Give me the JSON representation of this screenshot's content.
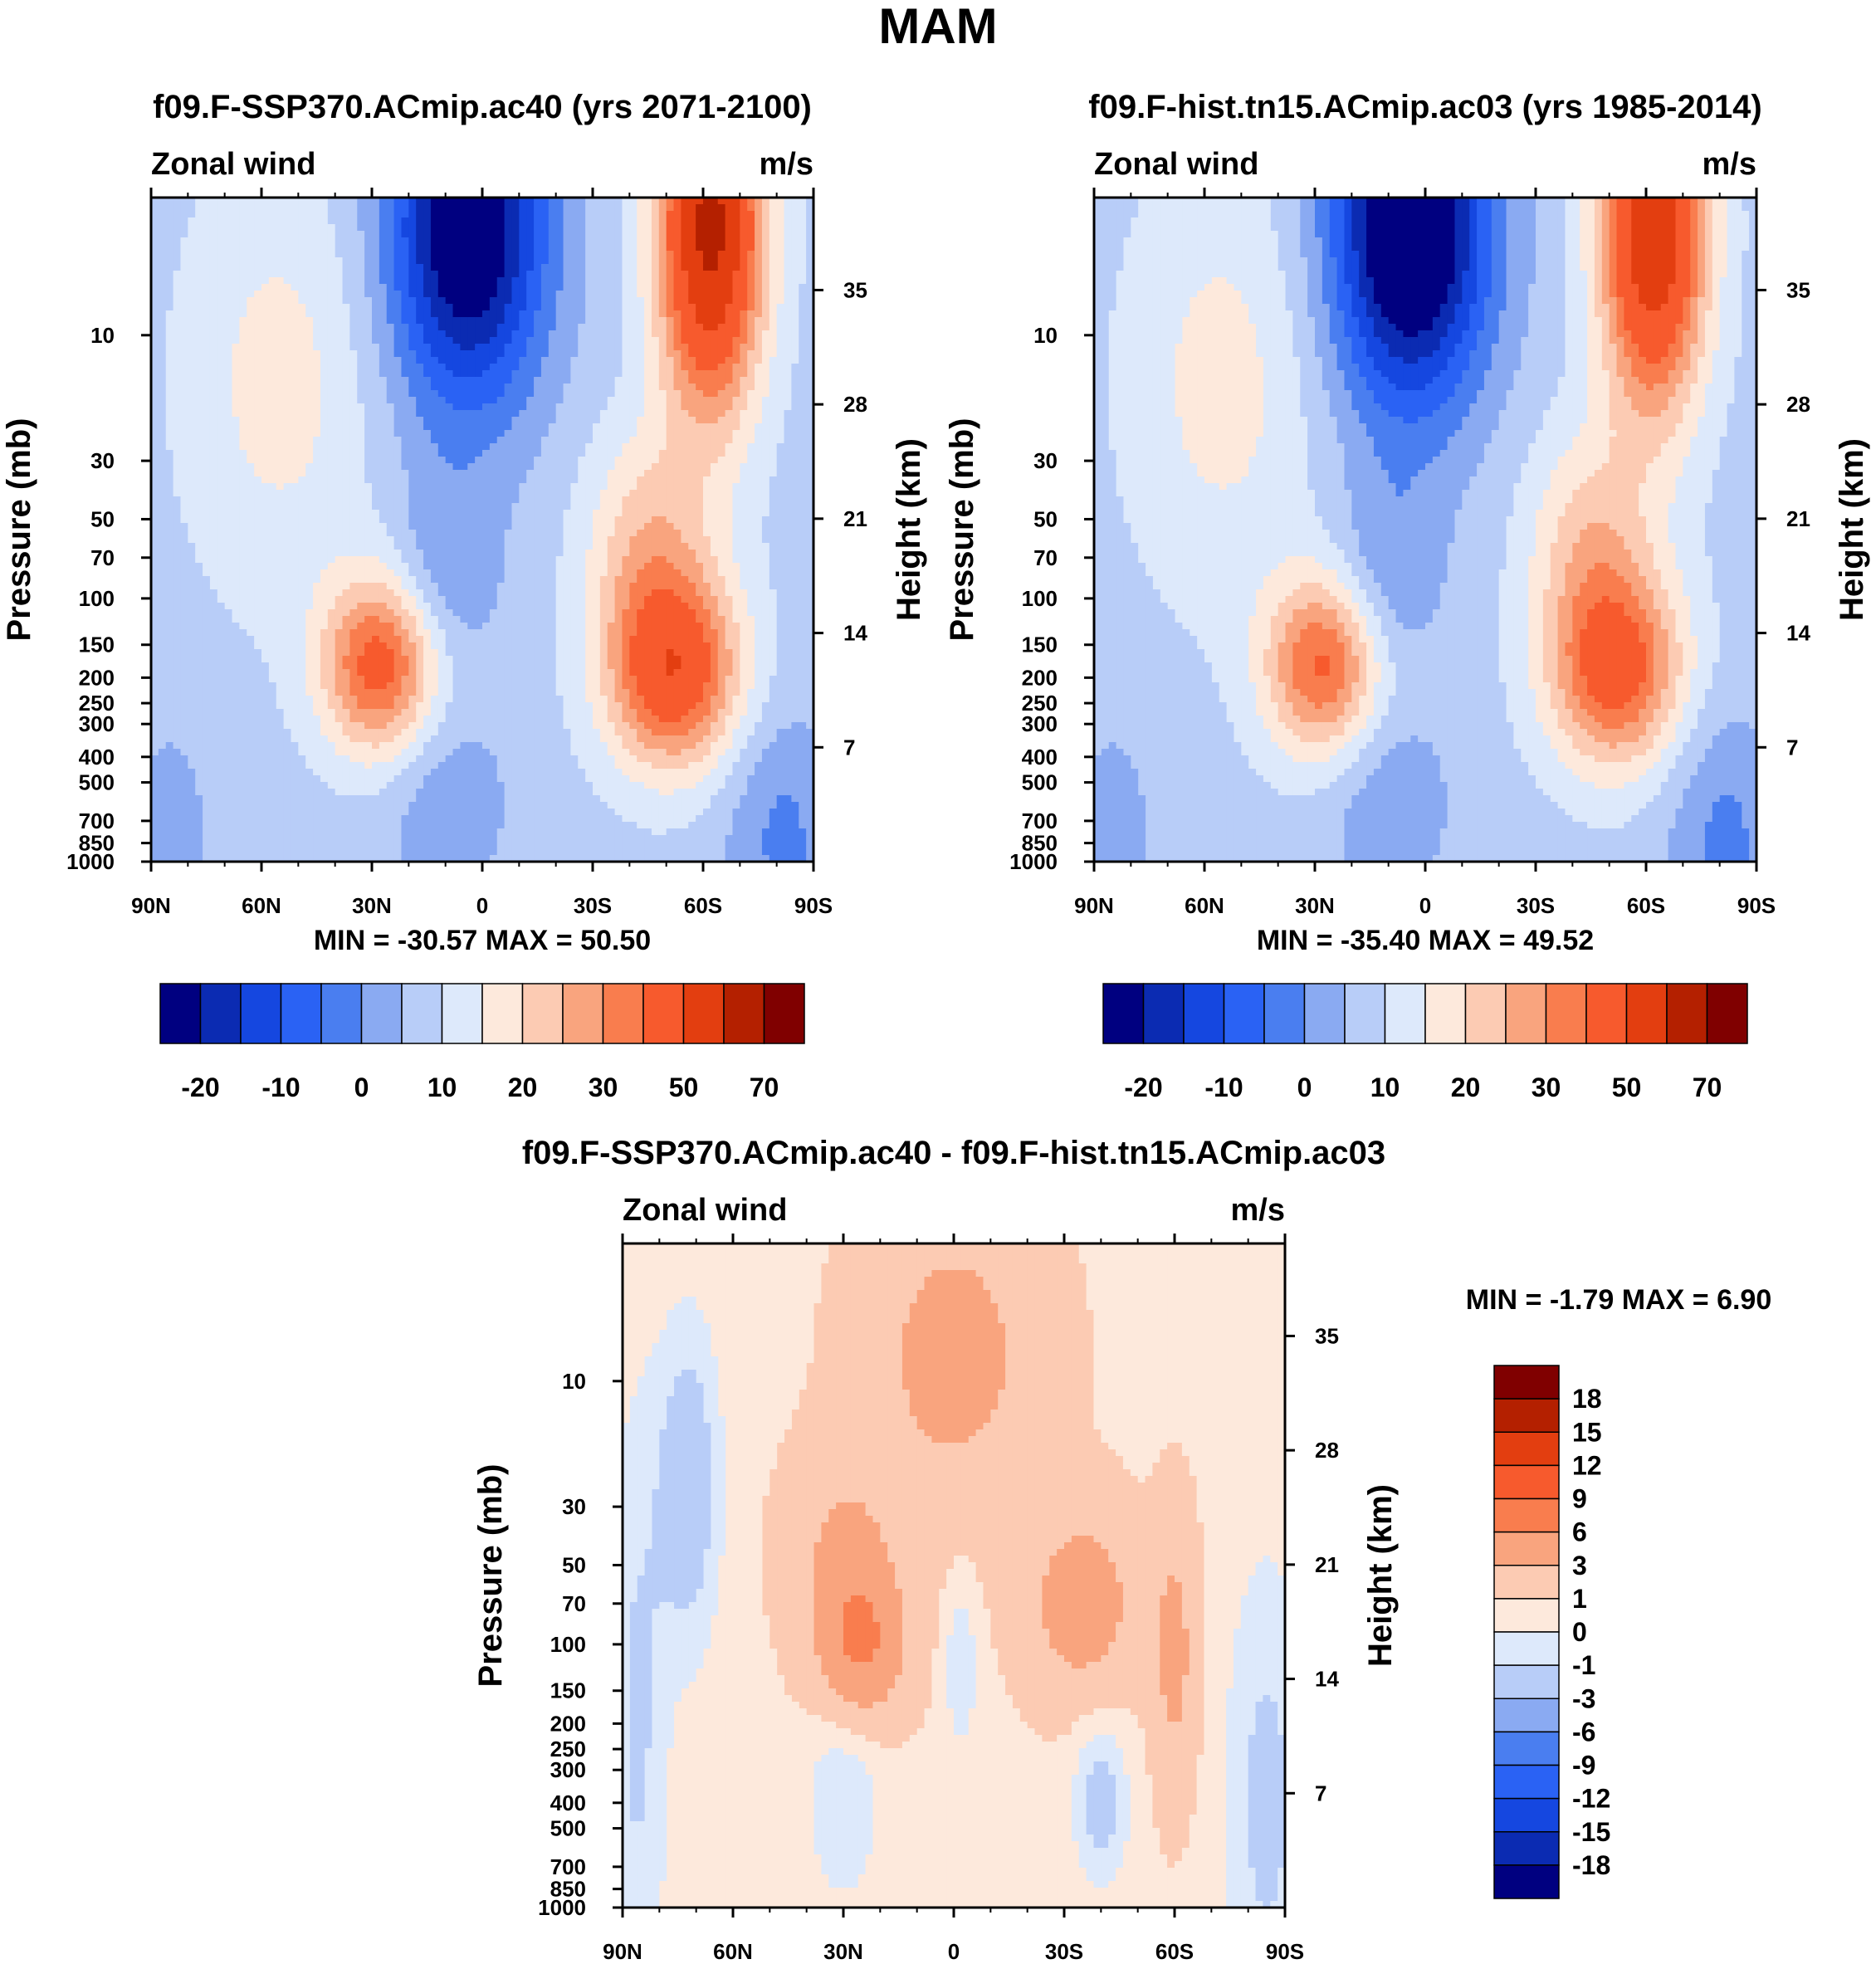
{
  "figure_title": "MAM",
  "colors": {
    "abs": [
      "#000080",
      "#0b2bb2",
      "#1547e0",
      "#2a62f4",
      "#4a7ef0",
      "#8aaaf2",
      "#b8cdf8",
      "#dde9fb",
      "#fde9dc",
      "#fccbb3",
      "#f9a47e",
      "#f97d4e",
      "#f75a2d",
      "#e33e10",
      "#b42000",
      "#800000"
    ],
    "diff": [
      "#000080",
      "#0b2bb2",
      "#1547e0",
      "#2a62f4",
      "#4a7ef0",
      "#8aaaf2",
      "#b8cdf8",
      "#dde9fb",
      "#fde9dc",
      "#fccbb3",
      "#f9a47e",
      "#f97d4e",
      "#f75a2d",
      "#e33e10",
      "#b42000",
      "#800000"
    ]
  },
  "panels": [
    {
      "id": "ssp370",
      "title": "f09.F-SSP370.ACmip.ac40 (yrs 2071-2100)",
      "left_label": "Zonal wind",
      "right_label": "m/s",
      "ylabel": "Pressure (mb)",
      "ylabel_right": "Height (km)",
      "stats": "MIN = -30.57  MAX =  50.50"
    },
    {
      "id": "hist",
      "title": "f09.F-hist.tn15.ACmip.ac03 (yrs 1985-2014)",
      "left_label": "Zonal wind",
      "right_label": "m/s",
      "ylabel": "Pressure (mb)",
      "ylabel_right": "Height (km)",
      "stats": "MIN = -35.40  MAX =  49.52"
    },
    {
      "id": "diff",
      "title": "f09.F-SSP370.ACmip.ac40 - f09.F-hist.tn15.ACmip.ac03",
      "left_label": "Zonal wind",
      "right_label": "m/s",
      "ylabel": "Pressure (mb)",
      "ylabel_right": "Height (km)",
      "stats": "MIN =  -1.79  MAX =   6.90"
    }
  ],
  "chart_data": [
    {
      "type": "heatmap",
      "panel": "ssp370",
      "title": "f09.F-SSP370.ACmip.ac40 (yrs 2071-2100)",
      "variable": "Zonal wind",
      "units": "m/s",
      "xlabel": "",
      "ylabel": "Pressure (mb)",
      "ylabel_right": "Height (km)",
      "x_ticks": [
        "90N",
        "60N",
        "30N",
        "0",
        "30S",
        "60S",
        "90S"
      ],
      "x_range": [
        90,
        -90
      ],
      "y_ticks": [
        10,
        30,
        50,
        70,
        100,
        150,
        200,
        250,
        300,
        400,
        500,
        700,
        850,
        1000
      ],
      "y_range": [
        3,
        1000
      ],
      "height_ticks_km": [
        7,
        14,
        21,
        28,
        35
      ],
      "min": -30.57,
      "max": 50.5,
      "colorbar_labels": [
        "-20",
        "-10",
        "0",
        "10",
        "20",
        "30",
        "50",
        "70"
      ],
      "features": [
        {
          "kind": "easterly core",
          "lat_range": [
            20,
            -5
          ],
          "p_range": [
            3,
            40
          ],
          "value": -30
        },
        {
          "kind": "westerly jet",
          "lat": 28,
          "p": 180,
          "value": 30
        },
        {
          "kind": "westerly jet",
          "lat": -52,
          "p": 180,
          "value": 35
        },
        {
          "kind": "polar night jet",
          "lat": -62,
          "p": 5,
          "value": 50
        }
      ]
    },
    {
      "type": "heatmap",
      "panel": "hist",
      "title": "f09.F-hist.tn15.ACmip.ac03 (yrs 1985-2014)",
      "variable": "Zonal wind",
      "units": "m/s",
      "xlabel": "",
      "ylabel": "Pressure (mb)",
      "ylabel_right": "Height (km)",
      "x_ticks": [
        "90N",
        "60N",
        "30N",
        "0",
        "30S",
        "60S",
        "90S"
      ],
      "x_range": [
        90,
        -90
      ],
      "y_ticks": [
        10,
        30,
        50,
        70,
        100,
        150,
        200,
        250,
        300,
        400,
        500,
        700,
        850,
        1000
      ],
      "y_range": [
        3,
        1000
      ],
      "height_ticks_km": [
        7,
        14,
        21,
        28,
        35
      ],
      "min": -35.4,
      "max": 49.52,
      "colorbar_labels": [
        "-20",
        "-10",
        "0",
        "10",
        "20",
        "30",
        "50",
        "70"
      ],
      "features": [
        {
          "kind": "easterly core",
          "lat_range": [
            20,
            -5
          ],
          "p_range": [
            3,
            40
          ],
          "value": -35
        },
        {
          "kind": "westerly jet",
          "lat": 28,
          "p": 180,
          "value": 28
        },
        {
          "kind": "westerly jet",
          "lat": -52,
          "p": 200,
          "value": 32
        },
        {
          "kind": "polar night jet",
          "lat": -62,
          "p": 5,
          "value": 45
        }
      ]
    },
    {
      "type": "heatmap",
      "panel": "diff",
      "title": "f09.F-SSP370.ACmip.ac40 - f09.F-hist.tn15.ACmip.ac03",
      "variable": "Zonal wind",
      "units": "m/s",
      "xlabel": "",
      "ylabel": "Pressure (mb)",
      "ylabel_right": "Height (km)",
      "x_ticks": [
        "90N",
        "60N",
        "30N",
        "0",
        "30S",
        "60S",
        "90S"
      ],
      "x_range": [
        90,
        -90
      ],
      "y_ticks": [
        10,
        30,
        50,
        70,
        100,
        150,
        200,
        250,
        300,
        400,
        500,
        700,
        850,
        1000
      ],
      "y_range": [
        3,
        1000
      ],
      "height_ticks_km": [
        7,
        14,
        21,
        28,
        35
      ],
      "min": -1.79,
      "max": 6.9,
      "colorbar_labels": [
        "18",
        "15",
        "12",
        "9",
        "6",
        "3",
        "1",
        "0",
        "-1",
        "-3",
        "-6",
        "-9",
        "-12",
        "-15",
        "-18"
      ],
      "features": [
        {
          "kind": "positive maximum",
          "lat": 25,
          "p": 100,
          "value": 6
        },
        {
          "kind": "positive lobe",
          "lat": -35,
          "p": 70,
          "value": 4
        },
        {
          "kind": "positive lobe",
          "lat": 0,
          "p": 10,
          "value": 4
        },
        {
          "kind": "negative",
          "lat": 75,
          "p": 30,
          "value": -1.5
        },
        {
          "kind": "negative",
          "lat": -40,
          "p": 400,
          "value": -1
        }
      ]
    }
  ]
}
